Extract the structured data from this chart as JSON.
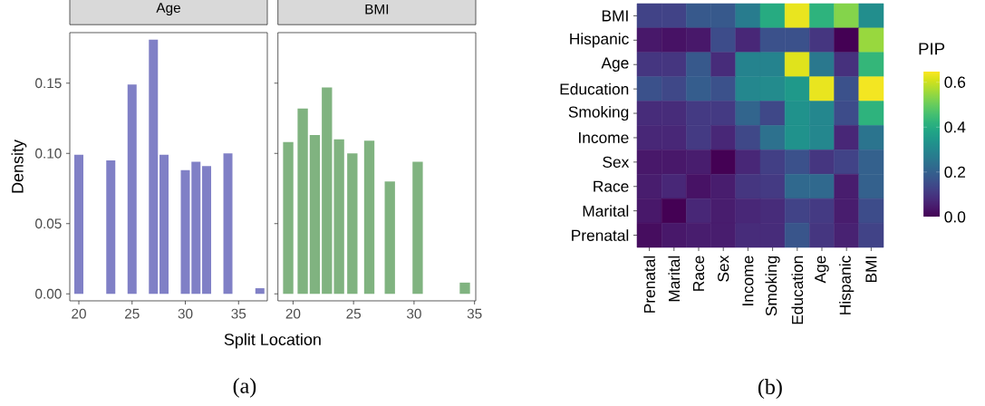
{
  "chart_data": [
    {
      "type": "bar",
      "title": "Age",
      "xlabel": "Split Location",
      "ylabel": "Density",
      "color": "#8080c6",
      "x": [
        20,
        23,
        25,
        27,
        28,
        30,
        31,
        32,
        34,
        37
      ],
      "values": [
        0.099,
        0.095,
        0.149,
        0.181,
        0.099,
        0.088,
        0.094,
        0.091,
        0.1,
        0.004
      ],
      "xlim": [
        19.15,
        37.7
      ],
      "ylim": [
        -0.005,
        0.186
      ],
      "xticks": [
        20,
        25,
        30,
        35
      ],
      "yticks": [
        {
          "value": 0,
          "label": "0.00"
        },
        {
          "value": 0.05,
          "label": "0.05"
        },
        {
          "value": 0.1,
          "label": "0.10"
        },
        {
          "value": 0.15,
          "label": "0.15"
        }
      ],
      "annotations": [
        "(a)"
      ]
    },
    {
      "type": "bar",
      "title": "BMI",
      "color": "#80b380",
      "x": [
        19.6,
        20.8,
        21.8,
        22.8,
        23.8,
        24.9,
        26.3,
        28.0,
        30.3,
        34.2
      ],
      "values": [
        0.108,
        0.132,
        0.113,
        0.147,
        0.11,
        0.1,
        0.109,
        0.08,
        0.094,
        0.008
      ],
      "xlim": [
        18.75,
        35.1
      ],
      "ylim": [
        -0.005,
        0.186
      ],
      "xticks": [
        20,
        25,
        30,
        35
      ],
      "yticks": [
        0,
        0.05,
        0.1,
        0.15
      ],
      "tick_labels": "x"
    },
    {
      "type": "heatmap",
      "clabel": "PIP",
      "categories": [
        "Prenatal",
        "Marital",
        "Race",
        "Sex",
        "Income",
        "Smoking",
        "Education",
        "Age",
        "Hispanic",
        "BMI"
      ],
      "y_categories": [
        "BMI",
        "Hispanic",
        "Age",
        "Education",
        "Smoking",
        "Income",
        "Sex",
        "Race",
        "Marital",
        "Prenatal"
      ],
      "cells": [
        [
          0.13,
          0.13,
          0.18,
          0.18,
          0.27,
          0.4,
          0.63,
          0.42,
          0.53,
          0.32
        ],
        [
          0.04,
          0.03,
          0.04,
          0.15,
          0.07,
          0.16,
          0.16,
          0.1,
          0.0,
          0.55
        ],
        [
          0.1,
          0.1,
          0.18,
          0.08,
          0.29,
          0.29,
          0.62,
          0.26,
          0.09,
          0.43
        ],
        [
          0.16,
          0.14,
          0.19,
          0.16,
          0.3,
          0.31,
          0.35,
          0.63,
          0.16,
          0.64
        ],
        [
          0.08,
          0.08,
          0.11,
          0.11,
          0.21,
          0.14,
          0.33,
          0.3,
          0.15,
          0.42
        ],
        [
          0.07,
          0.07,
          0.11,
          0.07,
          0.14,
          0.24,
          0.33,
          0.3,
          0.07,
          0.25
        ],
        [
          0.04,
          0.04,
          0.05,
          0.0,
          0.07,
          0.12,
          0.16,
          0.1,
          0.13,
          0.2
        ],
        [
          0.05,
          0.07,
          0.03,
          0.05,
          0.1,
          0.11,
          0.22,
          0.22,
          0.05,
          0.2
        ],
        [
          0.04,
          0.0,
          0.07,
          0.05,
          0.07,
          0.08,
          0.13,
          0.11,
          0.05,
          0.15
        ],
        [
          0.02,
          0.04,
          0.05,
          0.05,
          0.08,
          0.08,
          0.17,
          0.1,
          0.06,
          0.13
        ]
      ],
      "clim": [
        0,
        0.65
      ],
      "cticks": [
        {
          "value": 0,
          "label": "0.0"
        },
        0.2,
        0.4,
        0.6
      ],
      "annotations": [
        "(b)"
      ]
    }
  ]
}
